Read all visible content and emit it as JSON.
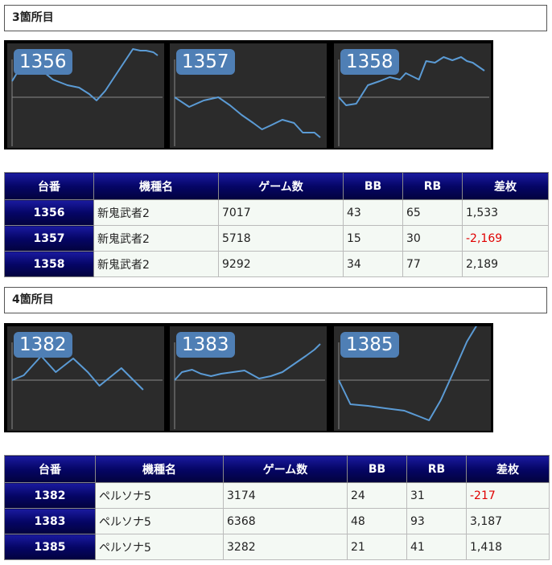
{
  "sections": [
    {
      "title": "3箇所目",
      "charts": [
        {
          "id": "1356",
          "points": [
            [
              0,
              20
            ],
            [
              0.05,
              35
            ],
            [
              0.15,
              35
            ],
            [
              0.22,
              31
            ],
            [
              0.28,
              22
            ],
            [
              0.38,
              15
            ],
            [
              0.46,
              12
            ],
            [
              0.53,
              4
            ],
            [
              0.58,
              -4
            ],
            [
              0.64,
              8
            ],
            [
              0.72,
              30
            ],
            [
              0.83,
              60
            ],
            [
              0.88,
              58
            ],
            [
              0.92,
              58
            ],
            [
              0.97,
              56
            ],
            [
              1.0,
              52
            ]
          ]
        },
        {
          "id": "1357",
          "points": [
            [
              0,
              0
            ],
            [
              0.1,
              -12
            ],
            [
              0.2,
              -4
            ],
            [
              0.3,
              0
            ],
            [
              0.38,
              -10
            ],
            [
              0.46,
              -22
            ],
            [
              0.54,
              -32
            ],
            [
              0.6,
              -40
            ],
            [
              0.66,
              -35
            ],
            [
              0.74,
              -28
            ],
            [
              0.82,
              -32
            ],
            [
              0.88,
              -44
            ],
            [
              0.96,
              -44
            ],
            [
              1.0,
              -50
            ]
          ]
        },
        {
          "id": "1358",
          "points": [
            [
              0,
              0
            ],
            [
              0.05,
              -10
            ],
            [
              0.12,
              -8
            ],
            [
              0.2,
              15
            ],
            [
              0.28,
              20
            ],
            [
              0.35,
              25
            ],
            [
              0.42,
              22
            ],
            [
              0.46,
              30
            ],
            [
              0.55,
              22
            ],
            [
              0.6,
              45
            ],
            [
              0.66,
              43
            ],
            [
              0.72,
              50
            ],
            [
              0.78,
              46
            ],
            [
              0.84,
              50
            ],
            [
              0.88,
              45
            ],
            [
              0.92,
              43
            ],
            [
              1.0,
              33
            ]
          ]
        }
      ],
      "table": {
        "headers": [
          "台番",
          "機種名",
          "ゲーム数",
          "BB",
          "RB",
          "差枚"
        ],
        "rows": [
          {
            "no": "1356",
            "model": "新鬼武者2",
            "games": "7017",
            "bb": "43",
            "rb": "65",
            "diff": "1,533",
            "negative": false
          },
          {
            "no": "1357",
            "model": "新鬼武者2",
            "games": "5718",
            "bb": "15",
            "rb": "30",
            "diff": "-2,169",
            "negative": true
          },
          {
            "no": "1358",
            "model": "新鬼武者2",
            "games": "9292",
            "bb": "34",
            "rb": "77",
            "diff": "2,189",
            "negative": false
          }
        ]
      }
    },
    {
      "title": "4箇所目",
      "charts": [
        {
          "id": "1382",
          "points": [
            [
              0,
              0
            ],
            [
              0.08,
              6
            ],
            [
              0.2,
              30
            ],
            [
              0.3,
              10
            ],
            [
              0.42,
              27
            ],
            [
              0.52,
              10
            ],
            [
              0.6,
              -7
            ],
            [
              0.75,
              15
            ],
            [
              0.9,
              -12
            ]
          ]
        },
        {
          "id": "1383",
          "points": [
            [
              0,
              0
            ],
            [
              0.05,
              10
            ],
            [
              0.12,
              13
            ],
            [
              0.18,
              8
            ],
            [
              0.25,
              5
            ],
            [
              0.32,
              8
            ],
            [
              0.4,
              10
            ],
            [
              0.48,
              12
            ],
            [
              0.58,
              2
            ],
            [
              0.66,
              5
            ],
            [
              0.74,
              10
            ],
            [
              0.82,
              20
            ],
            [
              0.9,
              30
            ],
            [
              0.96,
              38
            ],
            [
              1.0,
              45
            ]
          ]
        },
        {
          "id": "1385",
          "points": [
            [
              0,
              0
            ],
            [
              0.08,
              -30
            ],
            [
              0.2,
              -32
            ],
            [
              0.32,
              -35
            ],
            [
              0.45,
              -38
            ],
            [
              0.55,
              -45
            ],
            [
              0.62,
              -50
            ],
            [
              0.7,
              -25
            ],
            [
              0.8,
              15
            ],
            [
              0.88,
              48
            ],
            [
              0.98,
              78
            ]
          ]
        }
      ],
      "table": {
        "headers": [
          "台番",
          "機種名",
          "ゲーム数",
          "BB",
          "RB",
          "差枚"
        ],
        "rows": [
          {
            "no": "1382",
            "model": "ペルソナ5",
            "games": "3174",
            "bb": "24",
            "rb": "31",
            "diff": "-217",
            "negative": true
          },
          {
            "no": "1383",
            "model": "ペルソナ5",
            "games": "6368",
            "bb": "48",
            "rb": "93",
            "diff": "3,187",
            "negative": false
          },
          {
            "no": "1385",
            "model": "ペルソナ5",
            "games": "3282",
            "bb": "21",
            "rb": "41",
            "diff": "1,418",
            "negative": false
          }
        ]
      }
    }
  ],
  "colors": {
    "line": "#5b9bd5",
    "axis": "#888888",
    "badge": "#4f7fb5",
    "negative": "#e00000"
  }
}
